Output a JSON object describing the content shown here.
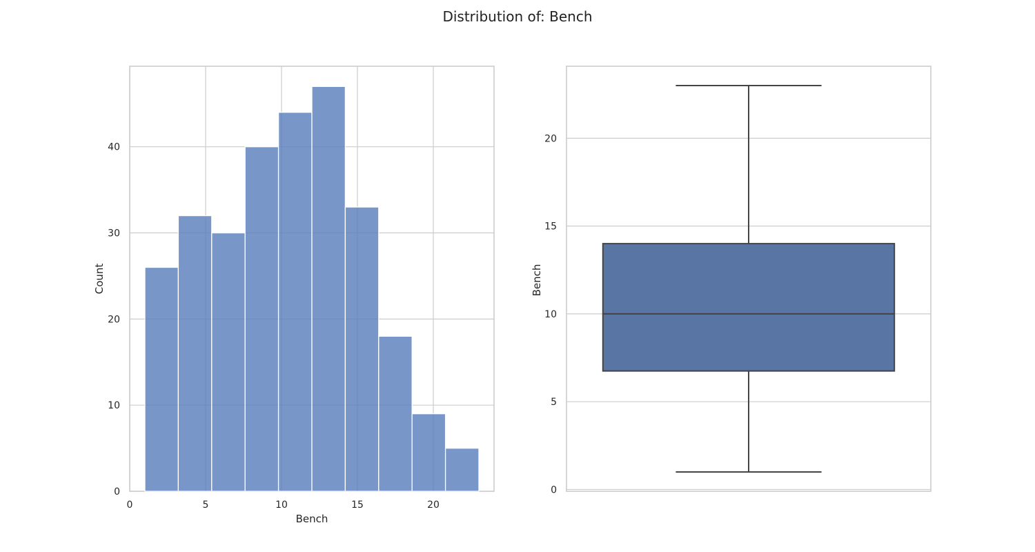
{
  "figure": {
    "title": "Distribution of: Bench"
  },
  "chart_data": [
    {
      "type": "histogram",
      "xlabel": "Bench",
      "ylabel": "Count",
      "xlim": [
        0,
        24
      ],
      "ylim": [
        0,
        49.35
      ],
      "xticks": [
        0,
        5,
        10,
        15,
        20
      ],
      "yticks": [
        0,
        10,
        20,
        30,
        40
      ],
      "grid": true,
      "bar_color": "#5b7fbc",
      "bins": [
        {
          "x0": 1.0,
          "x1": 3.2,
          "count": 26
        },
        {
          "x0": 3.2,
          "x1": 5.4,
          "count": 32
        },
        {
          "x0": 5.4,
          "x1": 7.6,
          "count": 30
        },
        {
          "x0": 7.6,
          "x1": 9.8,
          "count": 40
        },
        {
          "x0": 9.8,
          "x1": 12.0,
          "count": 44
        },
        {
          "x0": 12.0,
          "x1": 14.2,
          "count": 47
        },
        {
          "x0": 14.2,
          "x1": 16.4,
          "count": 33
        },
        {
          "x0": 16.4,
          "x1": 18.6,
          "count": 18
        },
        {
          "x0": 18.6,
          "x1": 20.8,
          "count": 9
        },
        {
          "x0": 20.8,
          "x1": 23.0,
          "count": 5
        }
      ]
    },
    {
      "type": "box",
      "xlabel": "",
      "ylabel": "Bench",
      "ylim": [
        -0.1,
        24.1
      ],
      "yticks": [
        0,
        5,
        10,
        15,
        20
      ],
      "grid": true,
      "box_color": "#5975a4",
      "line_color": "#444444",
      "whisker_low": 1,
      "q1": 6.75,
      "median": 10,
      "q3": 14,
      "whisker_high": 23
    }
  ]
}
